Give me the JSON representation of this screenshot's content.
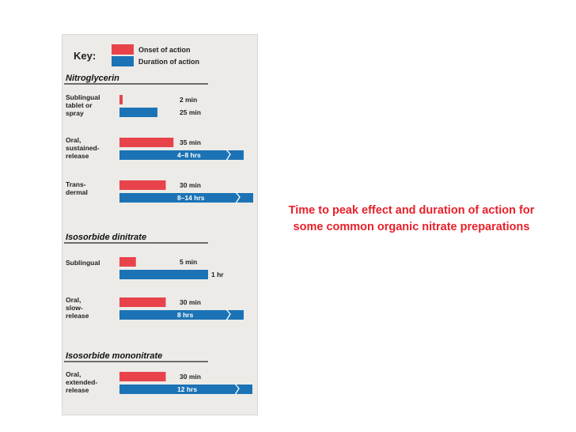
{
  "colors": {
    "onset": "#e8434b",
    "duration": "#1b73b6",
    "caption": "#e8202a",
    "panel": "#ecebe8"
  },
  "key": {
    "label": "Key:",
    "onset_label": "Onset of action",
    "duration_label": "Duration of action"
  },
  "caption": "Time to peak effect and duration of action for some common organic nitrate preparations",
  "chart_data": {
    "type": "bar",
    "orientation": "horizontal",
    "grid": false,
    "legend": "top-left",
    "groups": [
      {
        "name": "Nitroglycerin",
        "preparations": [
          {
            "label": [
              "Sublingual",
              "tablet or",
              "spray"
            ],
            "onset": "2 min",
            "duration": "25 min",
            "onset_min": 2,
            "duration_min": 25,
            "broken_axis": false
          },
          {
            "label": [
              "Oral,",
              "sustained-",
              "release"
            ],
            "onset": "35 min",
            "duration": "4–8 hrs",
            "onset_min": 35,
            "duration_min": 480,
            "broken_axis": true
          },
          {
            "label": [
              "Trans-",
              "dermal"
            ],
            "onset": "30 min",
            "duration": "8–14 hrs",
            "onset_min": 30,
            "duration_min": 840,
            "broken_axis": true
          }
        ]
      },
      {
        "name": "Isosorbide dinitrate",
        "preparations": [
          {
            "label": [
              "Sublingual"
            ],
            "onset": "5 min",
            "duration": "1 hr",
            "onset_min": 5,
            "duration_min": 60,
            "broken_axis": false
          },
          {
            "label": [
              "Oral,",
              "slow-",
              "release"
            ],
            "onset": "30 min",
            "duration": "8 hrs",
            "onset_min": 30,
            "duration_min": 480,
            "broken_axis": true
          }
        ]
      },
      {
        "name": "Isosorbide mononitrate",
        "preparations": [
          {
            "label": [
              "Oral,",
              "extended-",
              "release"
            ],
            "onset": "30 min",
            "duration": "12 hrs",
            "onset_min": 30,
            "duration_min": 720,
            "broken_axis": true
          }
        ]
      }
    ]
  }
}
